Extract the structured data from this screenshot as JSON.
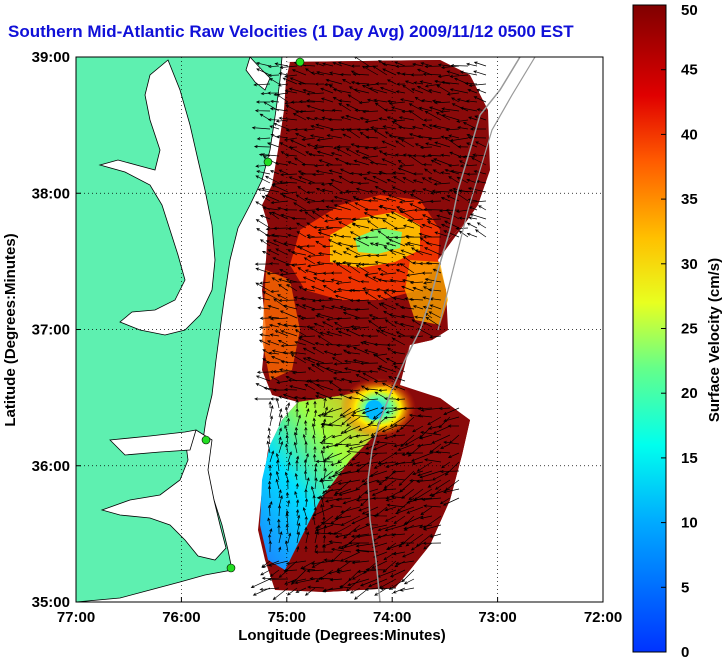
{
  "title": "Southern Mid-Atlantic Raw Velocities (1 Day Avg) 2009/11/12 0500 EST",
  "x_axis": {
    "label": "Longitude (Degrees:Minutes)",
    "ticks": [
      "77:00",
      "76:00",
      "75:00",
      "74:00",
      "73:00",
      "72:00"
    ]
  },
  "y_axis": {
    "label": "Latitude (Degrees:Minutes)",
    "ticks": [
      "39:00",
      "38:00",
      "37:00",
      "36:00",
      "35:00"
    ]
  },
  "colorbar": {
    "label": "Surface Velocity (cm/s)",
    "ticks": [
      "0",
      "5",
      "10",
      "15",
      "20",
      "25",
      "30",
      "35",
      "40",
      "45",
      "50"
    ],
    "range": [
      0,
      50
    ],
    "colormap": "jet"
  },
  "colors": {
    "land": "#5ef0b0",
    "title": "#1010d8",
    "max_velocity": "#800000",
    "station_marker": "#22dd22"
  },
  "chart_data": {
    "type": "heatmap",
    "title": "Southern Mid-Atlantic Raw Velocities (1 Day Avg) 2009/11/12 0500 EST",
    "xlabel": "Longitude (Degrees:Minutes)",
    "ylabel": "Latitude (Degrees:Minutes)",
    "xlim": [
      -77,
      -72
    ],
    "ylim": [
      35,
      39
    ],
    "grid": true,
    "color_range": [
      0,
      50
    ],
    "colorbar_label": "Surface Velocity (cm/s)",
    "features": [
      "raw surface current vectors",
      "eddy near 36:20N 74:35W"
    ]
  }
}
